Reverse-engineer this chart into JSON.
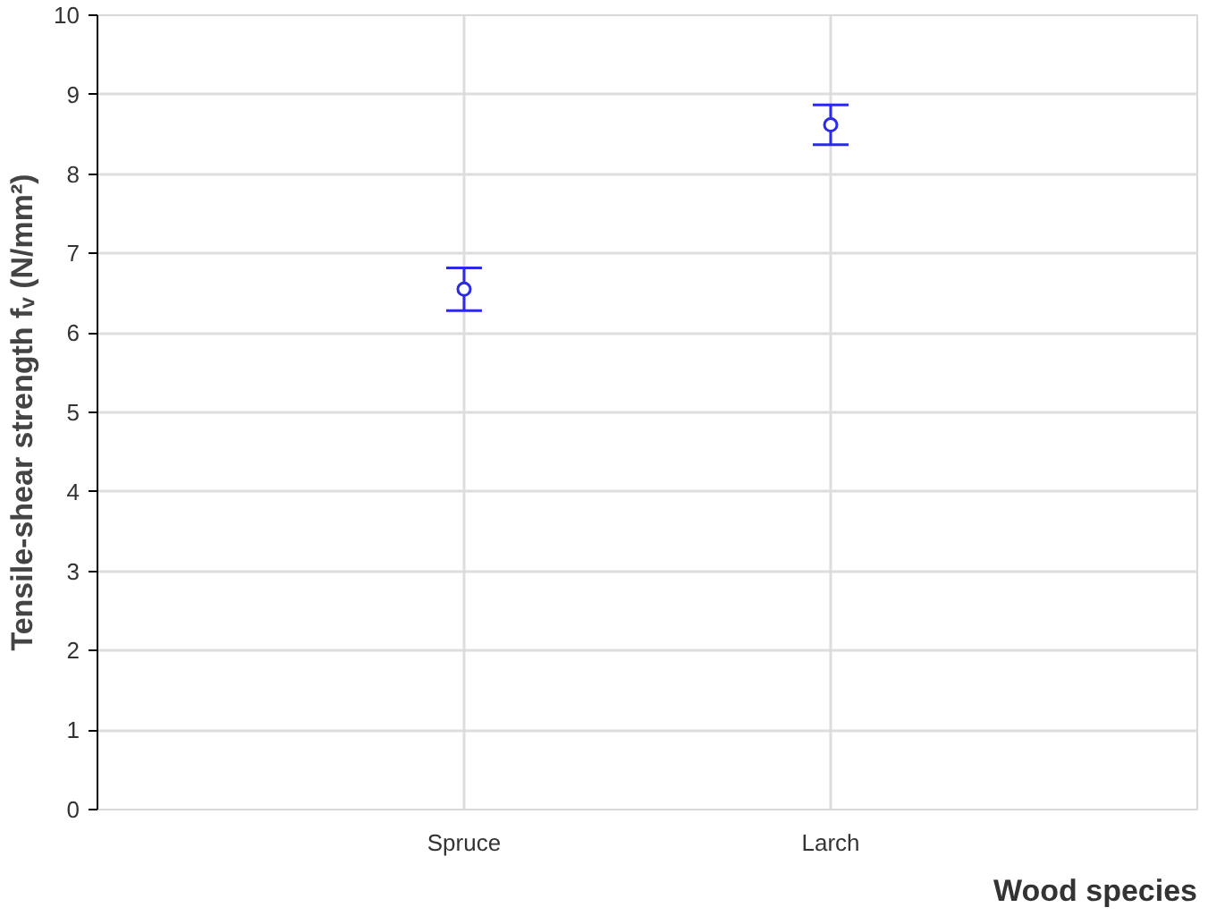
{
  "chart_data": {
    "type": "scatter",
    "categories": [
      "Spruce",
      "Larch"
    ],
    "values": [
      6.55,
      8.62
    ],
    "errors": [
      0.27,
      0.25
    ],
    "color": "#2a2ae8",
    "marker": "circle",
    "xlabel": "Wood species",
    "ylabel": "Tensile-shear strength fᵥ (N/mm²)",
    "ylim": [
      0,
      10
    ],
    "yticks": [
      0,
      1,
      2,
      3,
      4,
      5,
      6,
      7,
      8,
      9,
      10
    ],
    "grid": true
  }
}
